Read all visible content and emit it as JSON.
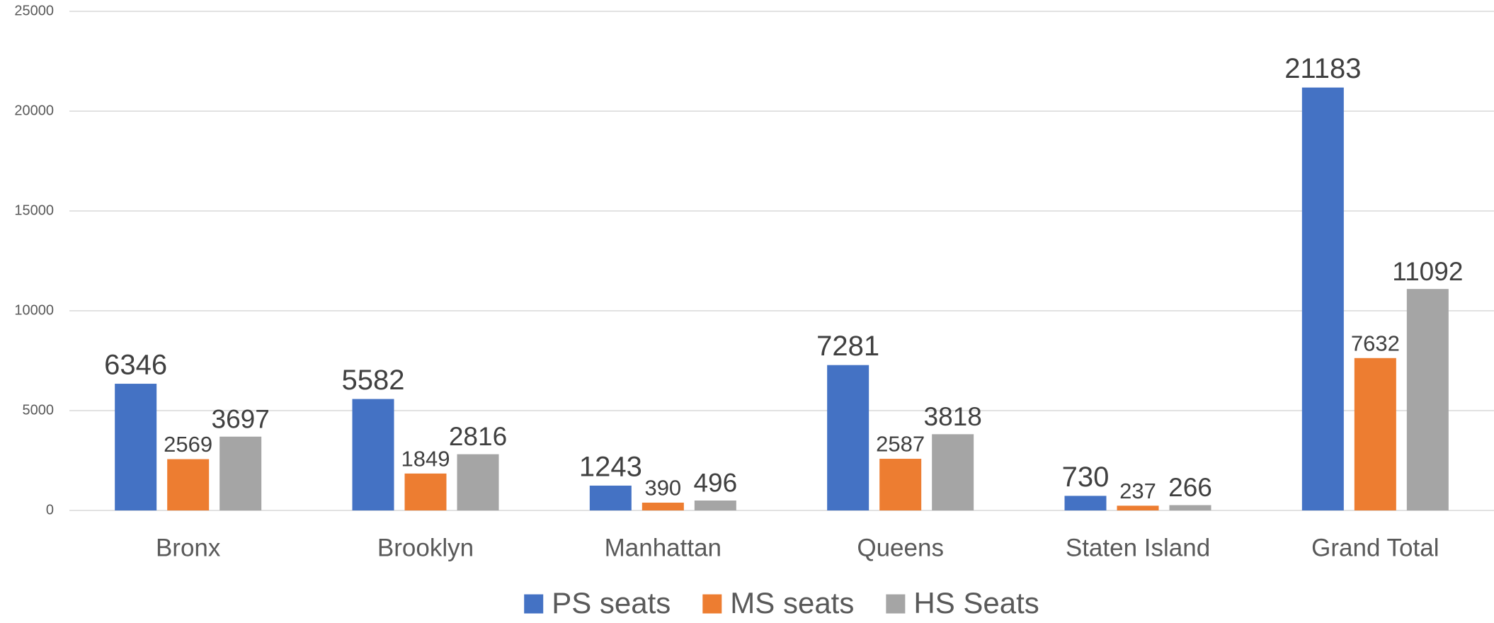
{
  "chart_data": {
    "type": "bar",
    "categories": [
      "Bronx",
      "Brooklyn",
      "Manhattan",
      "Queens",
      "Staten Island",
      "Grand Total"
    ],
    "series": [
      {
        "name": "PS seats",
        "color": "#4472c4",
        "values": [
          6346,
          5582,
          1243,
          7281,
          730,
          21183
        ]
      },
      {
        "name": "MS seats",
        "color": "#ed7d31",
        "values": [
          2569,
          1849,
          390,
          2587,
          237,
          7632
        ]
      },
      {
        "name": "HS Seats",
        "color": "#a5a5a5",
        "values": [
          3697,
          2816,
          496,
          3818,
          266,
          11092
        ]
      }
    ],
    "ylim": [
      0,
      25000
    ],
    "yticks": [
      0,
      5000,
      10000,
      15000,
      20000,
      25000
    ],
    "grid": true,
    "legend": "bottom"
  }
}
